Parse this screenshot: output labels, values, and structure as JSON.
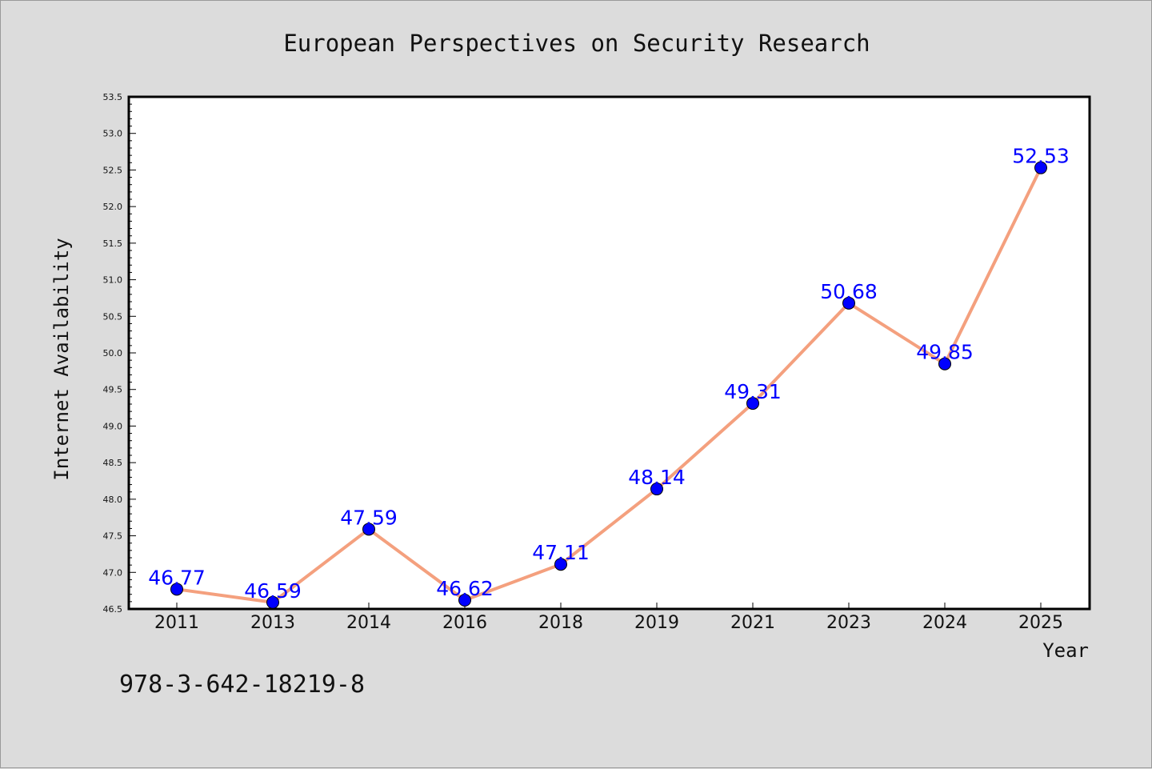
{
  "chart_data": {
    "type": "line",
    "title": "European Perspectives on Security Research",
    "xlabel": "Year",
    "ylabel": "Internet Availability",
    "categories": [
      "2011",
      "2013",
      "2014",
      "2016",
      "2018",
      "2019",
      "2021",
      "2023",
      "2024",
      "2025"
    ],
    "values": [
      46.77,
      46.59,
      47.59,
      46.62,
      47.11,
      48.14,
      49.31,
      50.68,
      49.85,
      52.53
    ],
    "data_labels": [
      "46.77",
      "46.59",
      "47.59",
      "46.62",
      "47.11",
      "48.14",
      "49.31",
      "50.68",
      "49.85",
      "52.53"
    ],
    "ylim": [
      46.5,
      53.5
    ],
    "yticks": [
      "46.5",
      "47.0",
      "47.5",
      "48.0",
      "48.5",
      "49.0",
      "49.5",
      "50.0",
      "50.5",
      "51.0",
      "51.5",
      "52.0",
      "52.5",
      "53.0",
      "53.5"
    ],
    "grid": false,
    "line_color": "#f4a07e",
    "marker_color": "#0000ff",
    "label_color": "#0000ff",
    "background_color": "#dcdcdc",
    "plot_background": "#ffffff"
  },
  "footnote": "978-3-642-18219-8"
}
